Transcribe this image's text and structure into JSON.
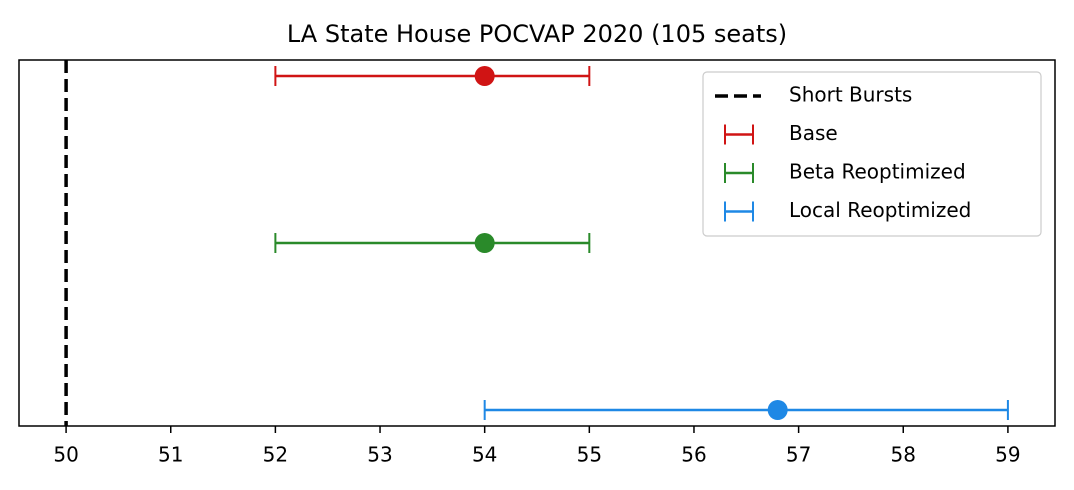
{
  "chart_data": {
    "type": "errorbar",
    "title": "LA State House POCVAP 2020 (105 seats)",
    "xlim": [
      49.55,
      59.45
    ],
    "xticks": [
      50,
      51,
      52,
      53,
      54,
      55,
      56,
      57,
      58,
      59
    ],
    "reference_line": {
      "name": "Short Bursts",
      "value": 50,
      "color": "#000000"
    },
    "series": [
      {
        "name": "Base",
        "color": "#d01414",
        "value": 54,
        "low": 52,
        "high": 55
      },
      {
        "name": "Beta Reoptimized",
        "color": "#2a8a2a",
        "value": 54,
        "low": 52,
        "high": 55
      },
      {
        "name": "Local Reoptimized",
        "color": "#1e88e5",
        "value": 56.8,
        "low": 54,
        "high": 59
      }
    ],
    "legend": "upper right"
  }
}
